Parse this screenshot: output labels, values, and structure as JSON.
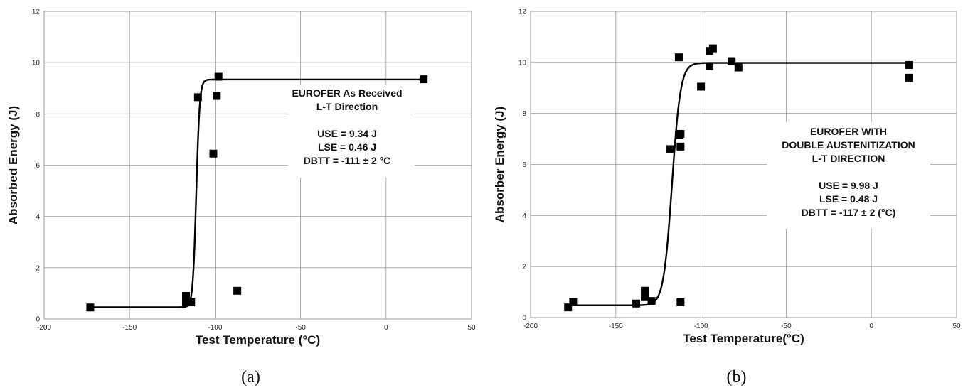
{
  "chart_data": [
    {
      "id": "a",
      "type": "scatter",
      "caption": "(a)",
      "xlabel": "Test Temperature (°C)",
      "ylabel": "Absorbed Energy (J)",
      "xlim": [
        -200,
        50
      ],
      "ylim": [
        0,
        12
      ],
      "xticks": [
        -200,
        -150,
        -100,
        -50,
        0,
        50
      ],
      "yticks": [
        0,
        2,
        4,
        6,
        8,
        10,
        12
      ],
      "grid": true,
      "annotation": [
        "EUROFER As Received",
        "L-T Direction",
        "",
        "USE = 9.34 J",
        "LSE = 0.46 J",
        "DBTT = -111 ± 2 °C"
      ],
      "fit": {
        "USE": 9.34,
        "LSE": 0.46,
        "DBTT": -111,
        "width": 2
      },
      "points": [
        {
          "x": -173,
          "y": 0.45
        },
        {
          "x": -117,
          "y": 0.9
        },
        {
          "x": -117,
          "y": 0.65
        },
        {
          "x": -114,
          "y": 0.65
        },
        {
          "x": -110,
          "y": 8.65
        },
        {
          "x": -101,
          "y": 6.45
        },
        {
          "x": -99,
          "y": 8.7
        },
        {
          "x": -98,
          "y": 9.45
        },
        {
          "x": -87,
          "y": 1.1
        },
        {
          "x": 22,
          "y": 9.35
        }
      ]
    },
    {
      "id": "b",
      "type": "scatter",
      "caption": "(b)",
      "xlabel": "Test Temperature(°C)",
      "ylabel": "Absorber Energy (J)",
      "xlim": [
        -200,
        50
      ],
      "ylim": [
        0,
        12
      ],
      "xticks": [
        -200,
        -150,
        -100,
        -50,
        0,
        50
      ],
      "yticks": [
        0,
        2,
        4,
        6,
        8,
        10,
        12
      ],
      "grid": true,
      "annotation": [
        "EUROFER WITH",
        "DOUBLE AUSTENITIZATION",
        "L-T DIRECTION",
        "",
        "USE = 9.98 J",
        "LSE = 0.48 J",
        "DBTT = -117 ± 2 (°C)"
      ],
      "fit": {
        "USE": 9.98,
        "LSE": 0.48,
        "DBTT": -117,
        "width": 5
      },
      "points": [
        {
          "x": -178,
          "y": 0.4
        },
        {
          "x": -175,
          "y": 0.6
        },
        {
          "x": -138,
          "y": 0.55
        },
        {
          "x": -133,
          "y": 1.05
        },
        {
          "x": -133,
          "y": 0.8
        },
        {
          "x": -129,
          "y": 0.65
        },
        {
          "x": -118,
          "y": 6.6
        },
        {
          "x": -113,
          "y": 7.15
        },
        {
          "x": -112,
          "y": 7.2
        },
        {
          "x": -112,
          "y": 6.7
        },
        {
          "x": -113,
          "y": 10.2
        },
        {
          "x": -112,
          "y": 0.6
        },
        {
          "x": -100,
          "y": 9.05
        },
        {
          "x": -95,
          "y": 10.45
        },
        {
          "x": -95,
          "y": 9.85
        },
        {
          "x": -93,
          "y": 10.55
        },
        {
          "x": -82,
          "y": 10.05
        },
        {
          "x": -78,
          "y": 9.8
        },
        {
          "x": 22,
          "y": 9.9
        },
        {
          "x": 22,
          "y": 9.4
        }
      ]
    }
  ]
}
